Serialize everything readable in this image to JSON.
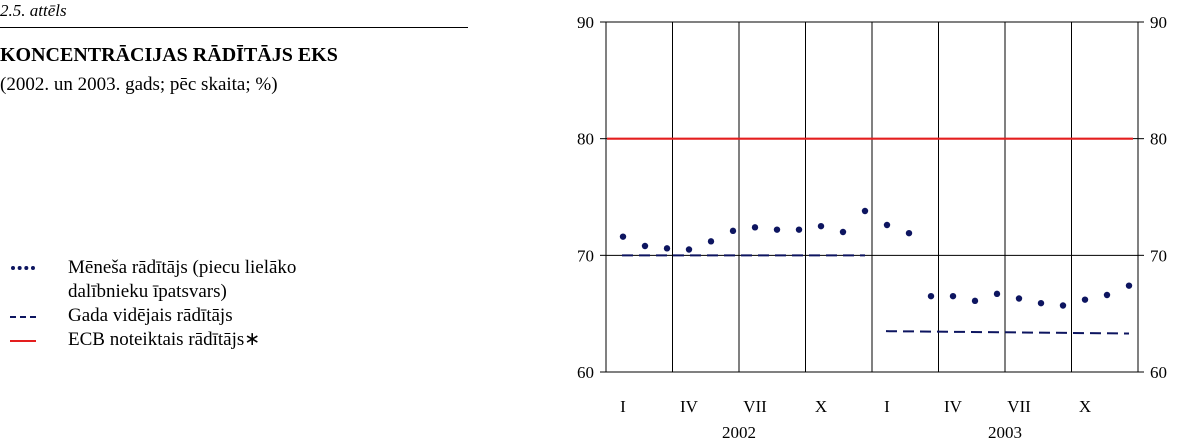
{
  "figure_label": "2.5. attēls",
  "title": "KONCENTRĀCIJAS RĀDĪTĀJS EKS",
  "subtitle": "(2002. un 2003. gads; pēc skaita; %)",
  "legend": [
    {
      "label_line1": "Mēneša rādītājs (piecu lielāko",
      "label_line2": "dalībnieku īpatsvars)",
      "marker": "dots"
    },
    {
      "label_line1": "Gada vidējais rādītājs",
      "label_line2": "",
      "marker": "dashed-line"
    },
    {
      "label_line1": "ECB noteiktais rādītājs∗",
      "label_line2": "",
      "marker": "solid-line"
    }
  ],
  "colors": {
    "monthly": "#0d1560",
    "annual_avg": "#0d1560",
    "ecb": "#e41e1e"
  },
  "chart_data": {
    "type": "line",
    "x_tick_labels": [
      "I",
      "IV",
      "VII",
      "X",
      "I",
      "IV",
      "VII",
      "X"
    ],
    "year_labels": [
      "2002",
      "2003"
    ],
    "ylim": [
      60,
      90
    ],
    "y_ticks": [
      60,
      70,
      80,
      90
    ],
    "grid": true,
    "series": [
      {
        "name": "Mēneša rādītājs (piecu lielāko dalībnieku īpatsvars)",
        "style": "dots",
        "x": [
          "2002-01",
          "2002-02",
          "2002-03",
          "2002-04",
          "2002-05",
          "2002-06",
          "2002-07",
          "2002-08",
          "2002-09",
          "2002-10",
          "2002-11",
          "2002-12",
          "2003-01",
          "2003-02",
          "2003-03",
          "2003-04",
          "2003-05",
          "2003-06",
          "2003-07",
          "2003-08",
          "2003-09",
          "2003-10",
          "2003-11",
          "2003-12"
        ],
        "values": [
          71.6,
          70.8,
          70.6,
          70.5,
          71.2,
          72.1,
          72.4,
          72.2,
          72.2,
          72.5,
          72.0,
          73.8,
          72.6,
          71.9,
          66.5,
          66.5,
          66.1,
          66.7,
          66.3,
          65.9,
          65.7,
          66.2,
          66.6,
          67.4
        ]
      },
      {
        "name": "Gada vidējais rādītājs",
        "style": "dashed",
        "segments": [
          {
            "x_start": "2002-01",
            "x_end": "2002-12",
            "values": [
              70.0,
              70.0
            ]
          },
          {
            "x_start": "2003-01",
            "x_end": "2003-12",
            "values": [
              63.5,
              63.3
            ]
          }
        ]
      },
      {
        "name": "ECB noteiktais rādītājs∗",
        "style": "solid",
        "x_start": "2002-01",
        "x_end": "2003-12",
        "values": [
          80,
          80
        ]
      }
    ]
  }
}
